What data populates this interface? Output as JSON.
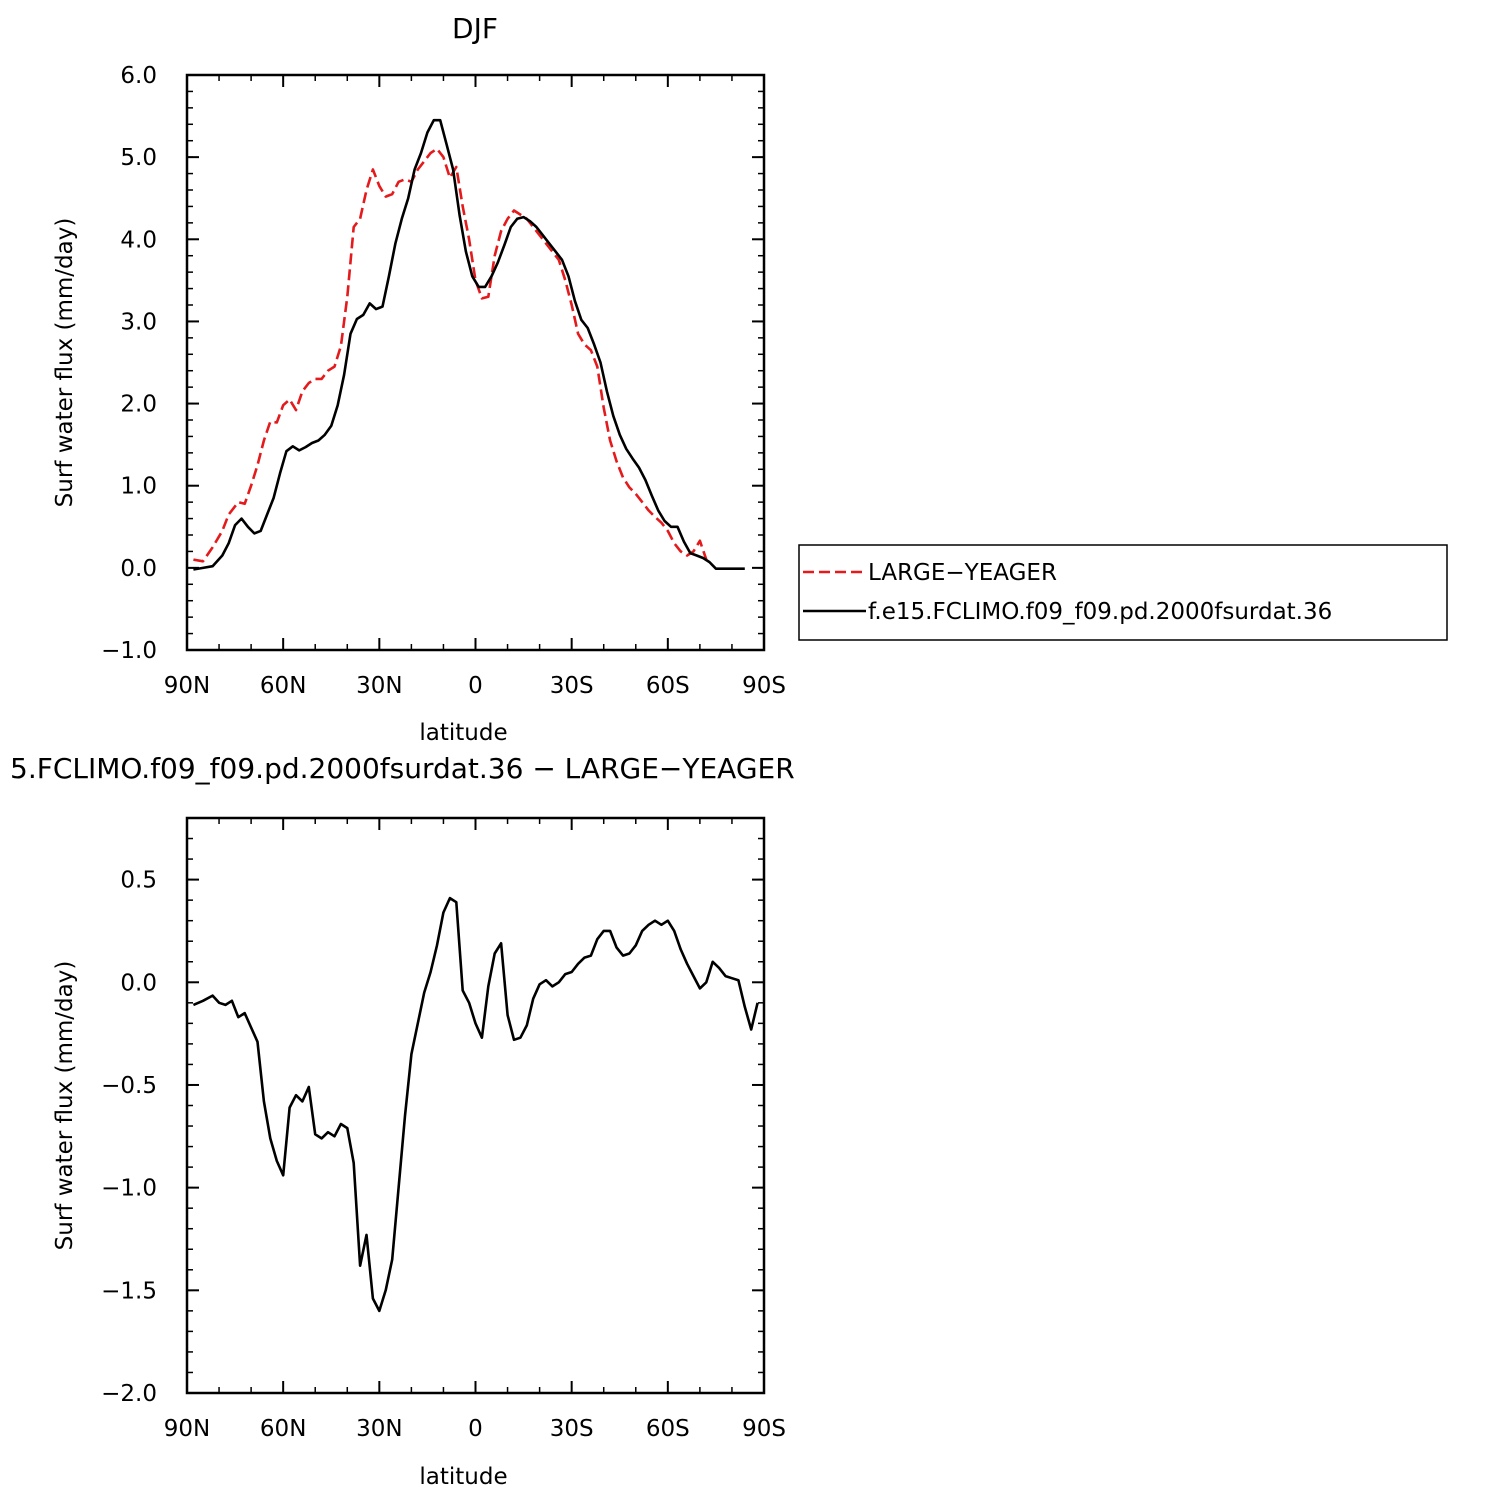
{
  "chart_data": [
    {
      "type": "line",
      "title": "DJF",
      "xlabel": "latitude",
      "ylabel": "Surf water flux (mm/day)",
      "xlim": [
        90,
        -90
      ],
      "ylim": [
        -1.0,
        6.0
      ],
      "x_ticks": [
        {
          "value": 90,
          "label": "90N"
        },
        {
          "value": 60,
          "label": "60N"
        },
        {
          "value": 30,
          "label": "30N"
        },
        {
          "value": 0,
          "label": "0"
        },
        {
          "value": -30,
          "label": "30S"
        },
        {
          "value": -60,
          "label": "60S"
        },
        {
          "value": -90,
          "label": "90S"
        }
      ],
      "y_ticks": [
        {
          "value": -1.0,
          "label": "−1.0"
        },
        {
          "value": 0.0,
          "label": "0.0"
        },
        {
          "value": 1.0,
          "label": "1.0"
        },
        {
          "value": 2.0,
          "label": "2.0"
        },
        {
          "value": 3.0,
          "label": "3.0"
        },
        {
          "value": 4.0,
          "label": "4.0"
        },
        {
          "value": 5.0,
          "label": "5.0"
        },
        {
          "value": 6.0,
          "label": "6.0"
        }
      ],
      "grid": false,
      "legend": "outside-right",
      "series": [
        {
          "name": "LARGE−YEAGER",
          "color": "#e41a1c",
          "style": "dashed",
          "points": [
            [
              88,
              0.1
            ],
            [
              85,
              0.08
            ],
            [
              82,
              0.25
            ],
            [
              79,
              0.45
            ],
            [
              77,
              0.65
            ],
            [
              74,
              0.8
            ],
            [
              72,
              0.78
            ],
            [
              70,
              1.0
            ],
            [
              68,
              1.25
            ],
            [
              66,
              1.55
            ],
            [
              64,
              1.78
            ],
            [
              62,
              1.77
            ],
            [
              60,
              1.98
            ],
            [
              58,
              2.05
            ],
            [
              56,
              1.92
            ],
            [
              54,
              2.15
            ],
            [
              52,
              2.25
            ],
            [
              50,
              2.3
            ],
            [
              48,
              2.3
            ],
            [
              46,
              2.4
            ],
            [
              44,
              2.45
            ],
            [
              42,
              2.7
            ],
            [
              40,
              3.3
            ],
            [
              38,
              4.15
            ],
            [
              36,
              4.25
            ],
            [
              34,
              4.6
            ],
            [
              32,
              4.85
            ],
            [
              30,
              4.65
            ],
            [
              28,
              4.52
            ],
            [
              26,
              4.55
            ],
            [
              24,
              4.7
            ],
            [
              22,
              4.73
            ],
            [
              20,
              4.7
            ],
            [
              18,
              4.85
            ],
            [
              16,
              4.95
            ],
            [
              14,
              5.05
            ],
            [
              12,
              5.1
            ],
            [
              10,
              5.0
            ],
            [
              8,
              4.75
            ],
            [
              6,
              4.88
            ],
            [
              4,
              4.4
            ],
            [
              2,
              4.0
            ],
            [
              0,
              3.5
            ],
            [
              -2,
              3.28
            ],
            [
              -4,
              3.3
            ],
            [
              -6,
              3.8
            ],
            [
              -8,
              4.1
            ],
            [
              -10,
              4.25
            ],
            [
              -12,
              4.35
            ],
            [
              -14,
              4.3
            ],
            [
              -16,
              4.25
            ],
            [
              -18,
              4.15
            ],
            [
              -20,
              4.05
            ],
            [
              -22,
              3.95
            ],
            [
              -24,
              3.85
            ],
            [
              -26,
              3.75
            ],
            [
              -28,
              3.5
            ],
            [
              -30,
              3.2
            ],
            [
              -32,
              2.85
            ],
            [
              -34,
              2.72
            ],
            [
              -36,
              2.65
            ],
            [
              -38,
              2.45
            ],
            [
              -40,
              1.95
            ],
            [
              -42,
              1.55
            ],
            [
              -44,
              1.3
            ],
            [
              -46,
              1.1
            ],
            [
              -48,
              0.98
            ],
            [
              -50,
              0.9
            ],
            [
              -52,
              0.8
            ],
            [
              -54,
              0.7
            ],
            [
              -56,
              0.62
            ],
            [
              -58,
              0.55
            ],
            [
              -60,
              0.45
            ],
            [
              -62,
              0.3
            ],
            [
              -64,
              0.2
            ],
            [
              -66,
              0.15
            ],
            [
              -68,
              0.2
            ],
            [
              -70,
              0.33
            ],
            [
              -72,
              0.1
            ]
          ]
        },
        {
          "name": "f.e15.FCLIMO.f09_f09.pd.2000fsurdat.36",
          "color": "#000000",
          "style": "solid",
          "points": [
            [
              88,
              -0.02
            ],
            [
              85,
              0.0
            ],
            [
              82,
              0.02
            ],
            [
              79,
              0.15
            ],
            [
              77,
              0.3
            ],
            [
              75,
              0.52
            ],
            [
              73,
              0.6
            ],
            [
              71,
              0.5
            ],
            [
              69,
              0.42
            ],
            [
              67,
              0.45
            ],
            [
              65,
              0.65
            ],
            [
              63,
              0.85
            ],
            [
              61,
              1.15
            ],
            [
              59,
              1.42
            ],
            [
              57,
              1.48
            ],
            [
              55,
              1.43
            ],
            [
              53,
              1.47
            ],
            [
              51,
              1.52
            ],
            [
              49,
              1.55
            ],
            [
              47,
              1.62
            ],
            [
              45,
              1.73
            ],
            [
              43,
              1.98
            ],
            [
              41,
              2.35
            ],
            [
              39,
              2.85
            ],
            [
              37,
              3.03
            ],
            [
              35,
              3.08
            ],
            [
              33,
              3.22
            ],
            [
              31,
              3.15
            ],
            [
              29,
              3.18
            ],
            [
              27,
              3.55
            ],
            [
              25,
              3.95
            ],
            [
              23,
              4.25
            ],
            [
              21,
              4.5
            ],
            [
              19,
              4.85
            ],
            [
              17,
              5.05
            ],
            [
              15,
              5.3
            ],
            [
              13,
              5.45
            ],
            [
              11,
              5.45
            ],
            [
              9,
              5.15
            ],
            [
              7,
              4.85
            ],
            [
              5,
              4.3
            ],
            [
              3,
              3.85
            ],
            [
              1,
              3.55
            ],
            [
              -1,
              3.42
            ],
            [
              -3,
              3.42
            ],
            [
              -5,
              3.55
            ],
            [
              -7,
              3.72
            ],
            [
              -9,
              3.93
            ],
            [
              -11,
              4.15
            ],
            [
              -13,
              4.25
            ],
            [
              -15,
              4.27
            ],
            [
              -17,
              4.22
            ],
            [
              -19,
              4.15
            ],
            [
              -21,
              4.05
            ],
            [
              -23,
              3.95
            ],
            [
              -25,
              3.85
            ],
            [
              -27,
              3.75
            ],
            [
              -29,
              3.55
            ],
            [
              -31,
              3.25
            ],
            [
              -33,
              3.02
            ],
            [
              -35,
              2.92
            ],
            [
              -37,
              2.72
            ],
            [
              -39,
              2.5
            ],
            [
              -41,
              2.15
            ],
            [
              -43,
              1.85
            ],
            [
              -45,
              1.62
            ],
            [
              -47,
              1.45
            ],
            [
              -49,
              1.33
            ],
            [
              -51,
              1.22
            ],
            [
              -53,
              1.07
            ],
            [
              -55,
              0.88
            ],
            [
              -57,
              0.7
            ],
            [
              -59,
              0.57
            ],
            [
              -61,
              0.5
            ],
            [
              -63,
              0.5
            ],
            [
              -65,
              0.32
            ],
            [
              -67,
              0.18
            ],
            [
              -69,
              0.15
            ],
            [
              -71,
              0.12
            ],
            [
              -73,
              0.07
            ],
            [
              -75,
              -0.01
            ],
            [
              -78,
              -0.01
            ],
            [
              -81,
              -0.01
            ],
            [
              -84,
              -0.01
            ]
          ]
        }
      ]
    },
    {
      "type": "line",
      "title": "5.FCLIMO.f09_f09.pd.2000fsurdat.36 − LARGE−YEAGER",
      "xlabel": "latitude",
      "ylabel": "Surf water flux (mm/day)",
      "xlim": [
        90,
        -90
      ],
      "ylim": [
        -2.0,
        0.8
      ],
      "x_ticks": [
        {
          "value": 90,
          "label": "90N"
        },
        {
          "value": 60,
          "label": "60N"
        },
        {
          "value": 30,
          "label": "30N"
        },
        {
          "value": 0,
          "label": "0"
        },
        {
          "value": -30,
          "label": "30S"
        },
        {
          "value": -60,
          "label": "60S"
        },
        {
          "value": -90,
          "label": "90S"
        }
      ],
      "y_ticks": [
        {
          "value": -2.0,
          "label": "−2.0"
        },
        {
          "value": -1.5,
          "label": "−1.5"
        },
        {
          "value": -1.0,
          "label": "−1.0"
        },
        {
          "value": -0.5,
          "label": "−0.5"
        },
        {
          "value": 0.0,
          "label": "0.0"
        },
        {
          "value": 0.5,
          "label": "0.5"
        }
      ],
      "grid": false,
      "series": [
        {
          "color": "#000000",
          "style": "solid",
          "points": [
            [
              88,
              -0.11
            ],
            [
              85,
              -0.09
            ],
            [
              82,
              -0.065
            ],
            [
              80,
              -0.1
            ],
            [
              78,
              -0.11
            ],
            [
              76,
              -0.09
            ],
            [
              74,
              -0.17
            ],
            [
              72,
              -0.15
            ],
            [
              70,
              -0.22
            ],
            [
              68,
              -0.29
            ],
            [
              66,
              -0.58
            ],
            [
              64,
              -0.76
            ],
            [
              62,
              -0.87
            ],
            [
              60,
              -0.94
            ],
            [
              58,
              -0.61
            ],
            [
              56,
              -0.55
            ],
            [
              54,
              -0.58
            ],
            [
              52,
              -0.51
            ],
            [
              50,
              -0.74
            ],
            [
              48,
              -0.76
            ],
            [
              46,
              -0.73
            ],
            [
              44,
              -0.75
            ],
            [
              42,
              -0.69
            ],
            [
              40,
              -0.71
            ],
            [
              38,
              -0.88
            ],
            [
              36,
              -1.38
            ],
            [
              34,
              -1.23
            ],
            [
              32,
              -1.54
            ],
            [
              30,
              -1.6
            ],
            [
              28,
              -1.5
            ],
            [
              26,
              -1.35
            ],
            [
              24,
              -1.0
            ],
            [
              22,
              -0.65
            ],
            [
              20,
              -0.35
            ],
            [
              18,
              -0.2
            ],
            [
              16,
              -0.05
            ],
            [
              14,
              0.05
            ],
            [
              12,
              0.18
            ],
            [
              10,
              0.34
            ],
            [
              8,
              0.41
            ],
            [
              6,
              0.39
            ],
            [
              4,
              -0.04
            ],
            [
              2,
              -0.1
            ],
            [
              0,
              -0.2
            ],
            [
              -2,
              -0.27
            ],
            [
              -4,
              -0.02
            ],
            [
              -6,
              0.14
            ],
            [
              -8,
              0.19
            ],
            [
              -10,
              -0.16
            ],
            [
              -12,
              -0.28
            ],
            [
              -14,
              -0.27
            ],
            [
              -16,
              -0.21
            ],
            [
              -18,
              -0.08
            ],
            [
              -20,
              -0.01
            ],
            [
              -22,
              0.01
            ],
            [
              -24,
              -0.02
            ],
            [
              -26,
              0.0
            ],
            [
              -28,
              0.04
            ],
            [
              -30,
              0.05
            ],
            [
              -32,
              0.09
            ],
            [
              -34,
              0.12
            ],
            [
              -36,
              0.13
            ],
            [
              -38,
              0.21
            ],
            [
              -40,
              0.25
            ],
            [
              -42,
              0.25
            ],
            [
              -44,
              0.17
            ],
            [
              -46,
              0.13
            ],
            [
              -48,
              0.14
            ],
            [
              -50,
              0.18
            ],
            [
              -52,
              0.25
            ],
            [
              -54,
              0.28
            ],
            [
              -56,
              0.3
            ],
            [
              -58,
              0.28
            ],
            [
              -60,
              0.3
            ],
            [
              -62,
              0.25
            ],
            [
              -64,
              0.16
            ],
            [
              -66,
              0.09
            ],
            [
              -68,
              0.03
            ],
            [
              -70,
              -0.03
            ],
            [
              -72,
              0.0
            ],
            [
              -74,
              0.1
            ],
            [
              -76,
              0.07
            ],
            [
              -78,
              0.03
            ],
            [
              -80,
              0.02
            ],
            [
              -82,
              0.01
            ],
            [
              -84,
              -0.12
            ],
            [
              -86,
              -0.23
            ],
            [
              -88,
              -0.1
            ]
          ]
        }
      ]
    }
  ]
}
